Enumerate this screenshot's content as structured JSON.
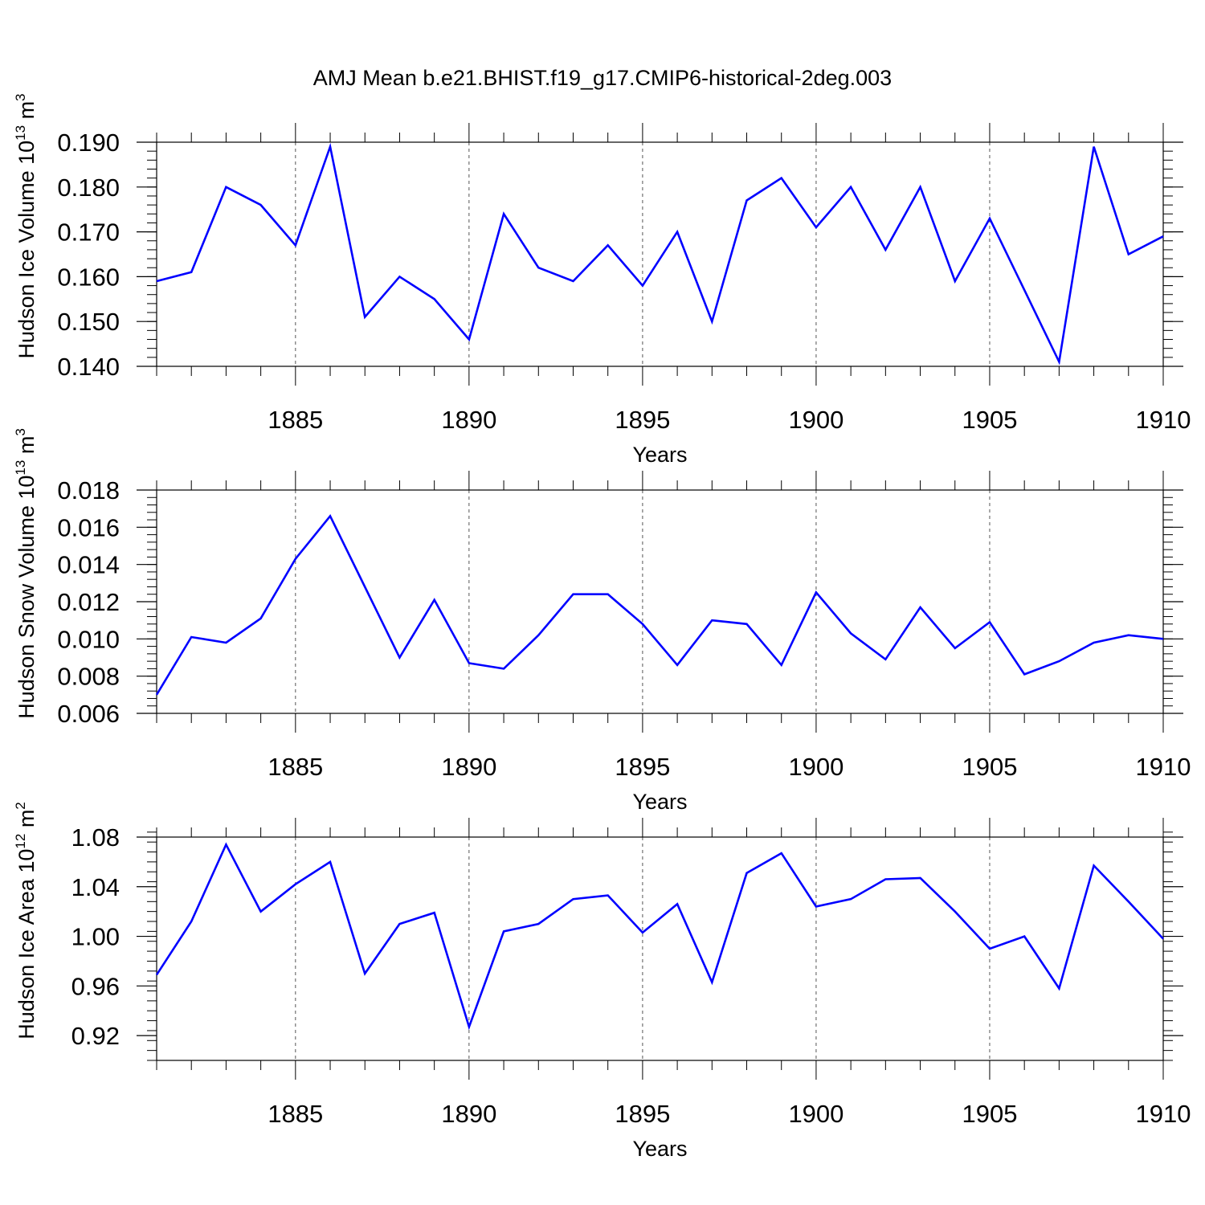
{
  "figure": {
    "title": "AMJ Mean b.e21.BHIST.f19_g17.CMIP6-historical-2deg.003"
  },
  "chart_data": [
    {
      "type": "line",
      "title": "",
      "xlabel": "Years",
      "ylabel": {
        "text": "Hudson Ice Volume 10",
        "exp": "13",
        "unit": " m",
        "unit_exp": "3"
      },
      "xlim": [
        1881,
        1910
      ],
      "ylim": [
        0.14,
        0.19
      ],
      "x_ticks": [
        1885,
        1890,
        1895,
        1900,
        1905,
        1910
      ],
      "y_ticks": [
        0.14,
        0.15,
        0.16,
        0.17,
        0.18,
        0.19
      ],
      "y_tick_labels": [
        "0.140",
        "0.150",
        "0.160",
        "0.170",
        "0.180",
        "0.190"
      ],
      "y_minor_step": 0.002,
      "line_color": "#0000ff",
      "series": [
        {
          "name": "Ice Volume",
          "x": [
            1881,
            1882,
            1883,
            1884,
            1885,
            1886,
            1887,
            1888,
            1889,
            1890,
            1891,
            1892,
            1893,
            1894,
            1895,
            1896,
            1897,
            1898,
            1899,
            1900,
            1901,
            1902,
            1903,
            1904,
            1905,
            1906,
            1907,
            1908,
            1909,
            1910
          ],
          "values": [
            0.159,
            0.161,
            0.18,
            0.176,
            0.167,
            0.189,
            0.151,
            0.16,
            0.155,
            0.146,
            0.174,
            0.162,
            0.159,
            0.167,
            0.158,
            0.17,
            0.15,
            0.177,
            0.182,
            0.171,
            0.18,
            0.166,
            0.18,
            0.159,
            0.173,
            0.157,
            0.141,
            0.189,
            0.165,
            0.169
          ]
        }
      ]
    },
    {
      "type": "line",
      "title": "",
      "xlabel": "Years",
      "ylabel": {
        "text": "Hudson Snow Volume 10",
        "exp": "13",
        "unit": " m",
        "unit_exp": "3"
      },
      "xlim": [
        1881,
        1910
      ],
      "ylim": [
        0.006,
        0.018
      ],
      "x_ticks": [
        1885,
        1890,
        1895,
        1900,
        1905,
        1910
      ],
      "y_ticks": [
        0.006,
        0.008,
        0.01,
        0.012,
        0.014,
        0.016,
        0.018
      ],
      "y_tick_labels": [
        "0.006",
        "0.008",
        "0.010",
        "0.012",
        "0.014",
        "0.016",
        "0.018"
      ],
      "y_minor_step": 0.0004,
      "line_color": "#0000ff",
      "series": [
        {
          "name": "Snow Volume",
          "x": [
            1881,
            1882,
            1883,
            1884,
            1885,
            1886,
            1887,
            1888,
            1889,
            1890,
            1891,
            1892,
            1893,
            1894,
            1895,
            1896,
            1897,
            1898,
            1899,
            1900,
            1901,
            1902,
            1903,
            1904,
            1905,
            1906,
            1907,
            1908,
            1909,
            1910
          ],
          "values": [
            0.007,
            0.0101,
            0.0098,
            0.0111,
            0.0143,
            0.0166,
            0.0128,
            0.009,
            0.0121,
            0.0087,
            0.0084,
            0.0102,
            0.0124,
            0.0124,
            0.0108,
            0.0086,
            0.011,
            0.0108,
            0.0086,
            0.0125,
            0.0103,
            0.0089,
            0.0117,
            0.0095,
            0.0109,
            0.0081,
            0.0088,
            0.0098,
            0.0102,
            0.01
          ]
        }
      ]
    },
    {
      "type": "line",
      "title": "",
      "xlabel": "Years",
      "ylabel": {
        "text": "Hudson Ice Area 10",
        "exp": "12",
        "unit": " m",
        "unit_exp": "2"
      },
      "xlim": [
        1881,
        1910
      ],
      "ylim": [
        0.9,
        1.08
      ],
      "x_ticks": [
        1885,
        1890,
        1895,
        1900,
        1905,
        1910
      ],
      "y_ticks": [
        0.92,
        0.96,
        1.0,
        1.04,
        1.08
      ],
      "y_tick_labels": [
        "0.92",
        "0.96",
        "1.00",
        "1.04",
        "1.08"
      ],
      "y_minor_step": 0.008,
      "line_color": "#0000ff",
      "series": [
        {
          "name": "Ice Area",
          "x": [
            1881,
            1882,
            1883,
            1884,
            1885,
            1886,
            1887,
            1888,
            1889,
            1890,
            1891,
            1892,
            1893,
            1894,
            1895,
            1896,
            1897,
            1898,
            1899,
            1900,
            1901,
            1902,
            1903,
            1904,
            1905,
            1906,
            1907,
            1908,
            1909,
            1910
          ],
          "values": [
            0.969,
            1.012,
            1.074,
            1.02,
            1.042,
            1.06,
            0.97,
            1.01,
            1.019,
            0.927,
            1.004,
            1.01,
            1.03,
            1.033,
            1.003,
            1.026,
            0.963,
            1.051,
            1.067,
            1.024,
            1.03,
            1.046,
            1.047,
            1.02,
            0.99,
            1.0,
            0.958,
            1.057,
            1.028,
            0.998
          ]
        }
      ]
    }
  ]
}
